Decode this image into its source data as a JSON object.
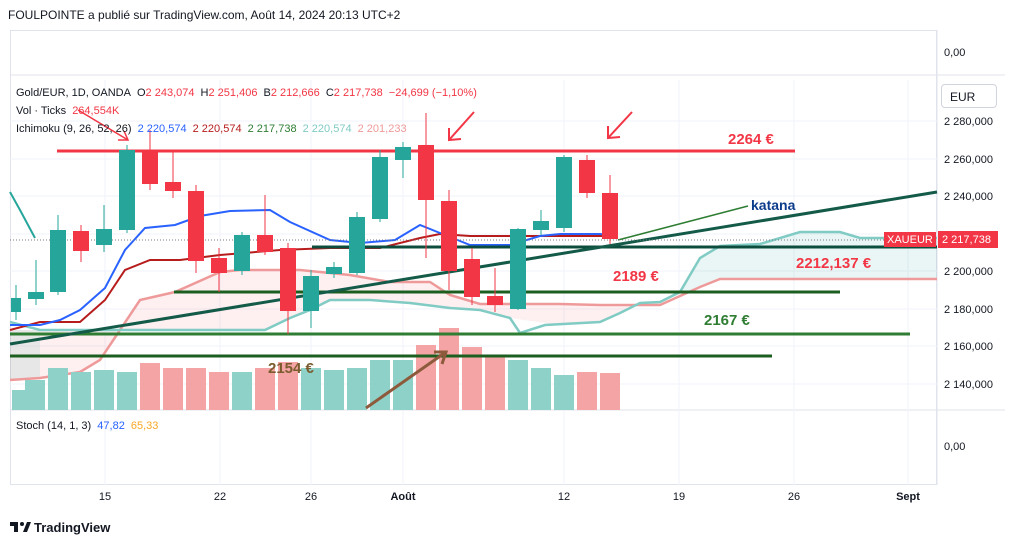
{
  "header": {
    "publish_line": "FOULPOINTE a publié sur TradingView.com, Août 14, 2024 20:13 UTC+2"
  },
  "legend": {
    "symbol": "Gold/EUR, 1D, OANDA",
    "o_label": "O",
    "o_value": "2 243,074",
    "h_label": "H",
    "h_value": "2 251,406",
    "b_label": "B",
    "b_value": "2 212,666",
    "c_label": "C",
    "c_value": "2 217,738",
    "change": "−24,699 (−1,10%)",
    "vol_label": "Vol · Ticks",
    "vol_value": "264,554K",
    "ichimoku_label": "Ichimoku (9, 26, 52, 26)",
    "ichimoku_values": [
      "2 220,574",
      "2 220,574",
      "2 217,738",
      "2 220,574",
      "2 201,233"
    ],
    "stoch_label": "Stoch (14, 1, 3)",
    "stoch_k": "47,82",
    "stoch_d": "65,33"
  },
  "currency_button": "EUR",
  "price_axis": {
    "top_zero": "0,00",
    "labels": [
      "2 280,000",
      "2 260,000",
      "2 240,000",
      "2 200,000",
      "2 180,000",
      "2 160,000",
      "2 140,000"
    ],
    "stoch_zero": "0,00",
    "symbol_badge": "XAUEUR",
    "last_price": "2 217,738"
  },
  "time_axis": [
    "15",
    "22",
    "26",
    "Août",
    "12",
    "19",
    "26",
    "Sept"
  ],
  "annotations": {
    "resistance": "2264 €",
    "katana": "katana",
    "level_2212": "2212,137 €",
    "level_2189": "2189 €",
    "level_2167": "2167 €",
    "level_2154": "2154 €"
  },
  "branding": "TradingView",
  "colors": {
    "bull": "#26a69a",
    "bear": "#f23645",
    "bull_vol": "#8ed1c8",
    "bear_vol": "#f4a4a4",
    "tenkan": "#2962ff",
    "kijun": "#b71c1c",
    "cloud_a": "#80cbc4",
    "cloud_b": "#ef9a9a",
    "resistance": "#f23645",
    "katana": "#145a48",
    "support": "#1b5e20"
  }
}
